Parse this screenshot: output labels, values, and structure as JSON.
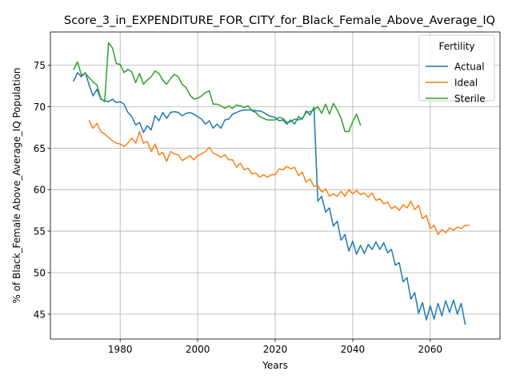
{
  "chart_data": {
    "type": "line",
    "title": "Score_3_in_EXPENDITURE_FOR_CITY_for_Black_Female_Above_Average_IQ",
    "xlabel": "Years",
    "ylabel": "% of Black_Female Above_Average_IQ Population",
    "xlim": [
      1962,
      2078
    ],
    "ylim": [
      42.0,
      79.0
    ],
    "xticks": [
      1980,
      2000,
      2020,
      2040,
      2060
    ],
    "yticks": [
      45,
      50,
      55,
      60,
      65,
      70,
      75
    ],
    "grid": true,
    "legend": {
      "title": "Fertility",
      "position": "top-right"
    },
    "series": [
      {
        "name": "Actual",
        "color": "#1f77b4",
        "x": [
          1968,
          1969,
          1970,
          1971,
          1972,
          1973,
          1974,
          1975,
          1976,
          1977,
          1978,
          1979,
          1980,
          1981,
          1982,
          1983,
          1984,
          1985,
          1986,
          1987,
          1988,
          1989,
          1990,
          1991,
          1992,
          1993,
          1994,
          1995,
          1996,
          1997,
          1998,
          1999,
          2000,
          2001,
          2002,
          2003,
          2004,
          2005,
          2006,
          2007,
          2008,
          2009,
          2010,
          2011,
          2012,
          2013,
          2014,
          2015,
          2016,
          2017,
          2018,
          2019,
          2020,
          2021,
          2022,
          2023,
          2024,
          2025,
          2026,
          2027,
          2028,
          2029,
          2030,
          2031,
          2032,
          2033,
          2034,
          2035,
          2036,
          2037,
          2038,
          2039,
          2040,
          2041,
          2042,
          2043,
          2044,
          2045,
          2046,
          2047,
          2048,
          2049,
          2050,
          2051,
          2052,
          2053,
          2054,
          2055,
          2056,
          2057,
          2058,
          2059,
          2060,
          2061,
          2062,
          2063,
          2064,
          2065,
          2066,
          2067,
          2068,
          2069,
          2070
        ],
        "y": [
          73.1,
          74.1,
          73.6,
          74.1,
          72.6,
          71.3,
          72.1,
          70.9,
          70.7,
          70.6,
          70.9,
          70.5,
          70.6,
          70.3,
          69.3,
          68.8,
          67.8,
          68.1,
          66.9,
          67.7,
          67.2,
          68.9,
          68.3,
          69.3,
          68.6,
          69.3,
          69.4,
          69.3,
          68.9,
          69.2,
          69.3,
          69.1,
          68.8,
          68.5,
          67.9,
          68.3,
          67.4,
          67.9,
          67.4,
          68.4,
          68.5,
          69.1,
          69.3,
          69.5,
          69.6,
          69.6,
          69.6,
          69.5,
          69.5,
          69.3,
          69.0,
          68.8,
          68.7,
          68.3,
          68.4,
          67.9,
          68.4,
          67.9,
          68.8,
          68.5,
          69.5,
          69.0,
          69.9,
          58.6,
          59.2,
          57.3,
          57.8,
          55.6,
          56.2,
          53.9,
          54.6,
          52.6,
          53.8,
          52.2,
          53.3,
          52.3,
          53.4,
          52.8,
          53.7,
          52.8,
          53.6,
          52.4,
          52.8,
          50.9,
          51.2,
          48.9,
          49.4,
          46.8,
          47.6,
          45.1,
          46.4,
          44.3,
          46.0,
          44.4,
          46.3,
          44.8,
          46.6,
          45.2,
          46.7,
          45.0,
          46.3,
          43.8,
          null
        ]
      },
      {
        "name": "Ideal",
        "color": "#ff7f0e",
        "x": [
          1972,
          1973,
          1974,
          1975,
          1976,
          1977,
          1978,
          1979,
          1980,
          1981,
          1982,
          1983,
          1984,
          1985,
          1986,
          1987,
          1988,
          1989,
          1990,
          1991,
          1992,
          1993,
          1994,
          1995,
          1996,
          1997,
          1998,
          1999,
          2000,
          2001,
          2002,
          2003,
          2004,
          2005,
          2006,
          2007,
          2008,
          2009,
          2010,
          2011,
          2012,
          2013,
          2014,
          2015,
          2016,
          2017,
          2018,
          2019,
          2020,
          2021,
          2022,
          2023,
          2024,
          2025,
          2026,
          2027,
          2028,
          2029,
          2030,
          2031,
          2032,
          2033,
          2034,
          2035,
          2036,
          2037,
          2038,
          2039,
          2040,
          2041,
          2042,
          2043,
          2044,
          2045,
          2046,
          2047,
          2048,
          2049,
          2050,
          2051,
          2052,
          2053,
          2054,
          2055,
          2056,
          2057,
          2058,
          2059,
          2060,
          2061,
          2062,
          2063,
          2064,
          2065,
          2066,
          2067,
          2068,
          2069,
          2070
        ],
        "y": [
          68.3,
          67.4,
          68.0,
          67.0,
          66.7,
          66.3,
          65.9,
          65.6,
          65.5,
          65.2,
          65.6,
          66.2,
          65.6,
          67.0,
          65.6,
          65.8,
          64.6,
          65.5,
          64.2,
          64.5,
          63.4,
          64.6,
          64.3,
          64.2,
          63.5,
          63.8,
          64.1,
          63.6,
          64.1,
          64.3,
          64.6,
          65.1,
          64.4,
          64.2,
          63.9,
          64.2,
          63.6,
          63.6,
          62.7,
          63.2,
          62.4,
          62.6,
          61.9,
          62.0,
          61.5,
          61.8,
          61.5,
          61.8,
          61.8,
          62.5,
          62.4,
          62.8,
          62.5,
          62.7,
          61.7,
          62.1,
          60.9,
          61.3,
          60.4,
          60.5,
          59.7,
          60.1,
          59.2,
          59.5,
          59.2,
          59.8,
          59.2,
          60.0,
          59.5,
          59.9,
          59.4,
          59.6,
          59.1,
          59.6,
          58.7,
          58.9,
          58.3,
          58.5,
          57.7,
          58.0,
          57.5,
          58.2,
          57.8,
          58.6,
          57.6,
          58.1,
          56.5,
          56.9,
          55.3,
          55.7,
          54.6,
          55.2,
          54.8,
          55.4,
          55.1,
          55.5,
          55.3,
          55.7,
          55.7
        ]
      },
      {
        "name": "Sterile",
        "color": "#2ca02c",
        "x": [
          1968,
          1969,
          1970,
          1971,
          1972,
          1973,
          1974,
          1975,
          1976,
          1977,
          1978,
          1979,
          1980,
          1981,
          1982,
          1983,
          1984,
          1985,
          1986,
          1987,
          1988,
          1989,
          1990,
          1991,
          1992,
          1993,
          1994,
          1995,
          1996,
          1997,
          1998,
          1999,
          2000,
          2001,
          2002,
          2003,
          2004,
          2005,
          2006,
          2007,
          2008,
          2009,
          2010,
          2011,
          2012,
          2013,
          2014,
          2015,
          2016,
          2017,
          2018,
          2019,
          2020,
          2021,
          2022,
          2023,
          2024,
          2025,
          2026,
          2027,
          2028,
          2029,
          2030,
          2031,
          2032,
          2033,
          2034,
          2035,
          2036,
          2037,
          2038,
          2039,
          2040,
          2041,
          2042
        ],
        "y": [
          74.5,
          75.4,
          73.8,
          74.0,
          73.5,
          73.0,
          72.6,
          71.0,
          70.6,
          77.7,
          77.1,
          75.2,
          75.1,
          74.1,
          74.5,
          74.2,
          72.9,
          74.0,
          72.7,
          73.2,
          73.6,
          74.3,
          74.0,
          73.2,
          72.7,
          73.4,
          73.9,
          73.6,
          72.7,
          72.3,
          71.4,
          70.9,
          71.0,
          71.3,
          71.7,
          71.9,
          70.3,
          70.3,
          70.1,
          69.8,
          70.1,
          69.8,
          70.2,
          70.1,
          69.9,
          70.1,
          69.5,
          69.3,
          68.8,
          68.6,
          68.4,
          68.4,
          68.4,
          68.7,
          68.6,
          68.1,
          68.2,
          68.5,
          68.4,
          68.6,
          69.3,
          69.4,
          69.6,
          70.0,
          69.2,
          70.3,
          69.1,
          70.4,
          69.6,
          68.6,
          67.0,
          67.0,
          68.2,
          69.1,
          67.8
        ]
      }
    ]
  }
}
